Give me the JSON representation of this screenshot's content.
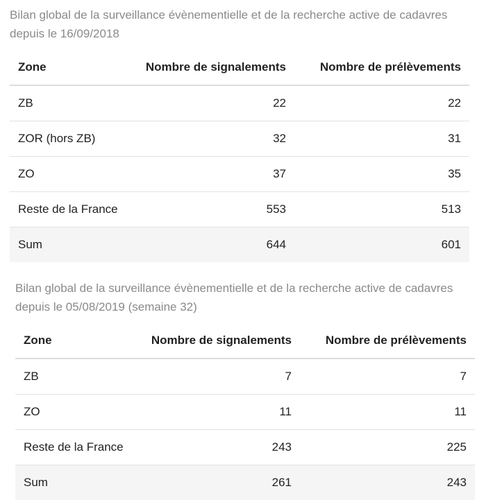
{
  "tables": [
    {
      "caption": "Bilan global de la surveillance évènementielle et de la recherche active de cadavres depuis le 16/09/2018",
      "headers": {
        "zone": "Zone",
        "signalements": "Nombre de signalements",
        "prelevements": "Nombre de prélèvements"
      },
      "rows": [
        {
          "zone": "ZB",
          "signalements": "22",
          "prelevements": "22"
        },
        {
          "zone": "ZOR (hors ZB)",
          "signalements": "32",
          "prelevements": "31"
        },
        {
          "zone": "ZO",
          "signalements": "37",
          "prelevements": "35"
        },
        {
          "zone": "Reste de la France",
          "signalements": "553",
          "prelevements": "513"
        },
        {
          "zone": "Sum",
          "signalements": "644",
          "prelevements": "601"
        }
      ]
    },
    {
      "caption": "Bilan global de la surveillance évènementielle et de la recherche active de cadavres depuis le 05/08/2019 (semaine 32)",
      "headers": {
        "zone": "Zone",
        "signalements": "Nombre de signalements",
        "prelevements": "Nombre de prélèvements"
      },
      "rows": [
        {
          "zone": "ZB",
          "signalements": "7",
          "prelevements": "7"
        },
        {
          "zone": "ZO",
          "signalements": "11",
          "prelevements": "11"
        },
        {
          "zone": "Reste de la France",
          "signalements": "243",
          "prelevements": "225"
        },
        {
          "zone": "Sum",
          "signalements": "261",
          "prelevements": "243"
        }
      ]
    }
  ]
}
